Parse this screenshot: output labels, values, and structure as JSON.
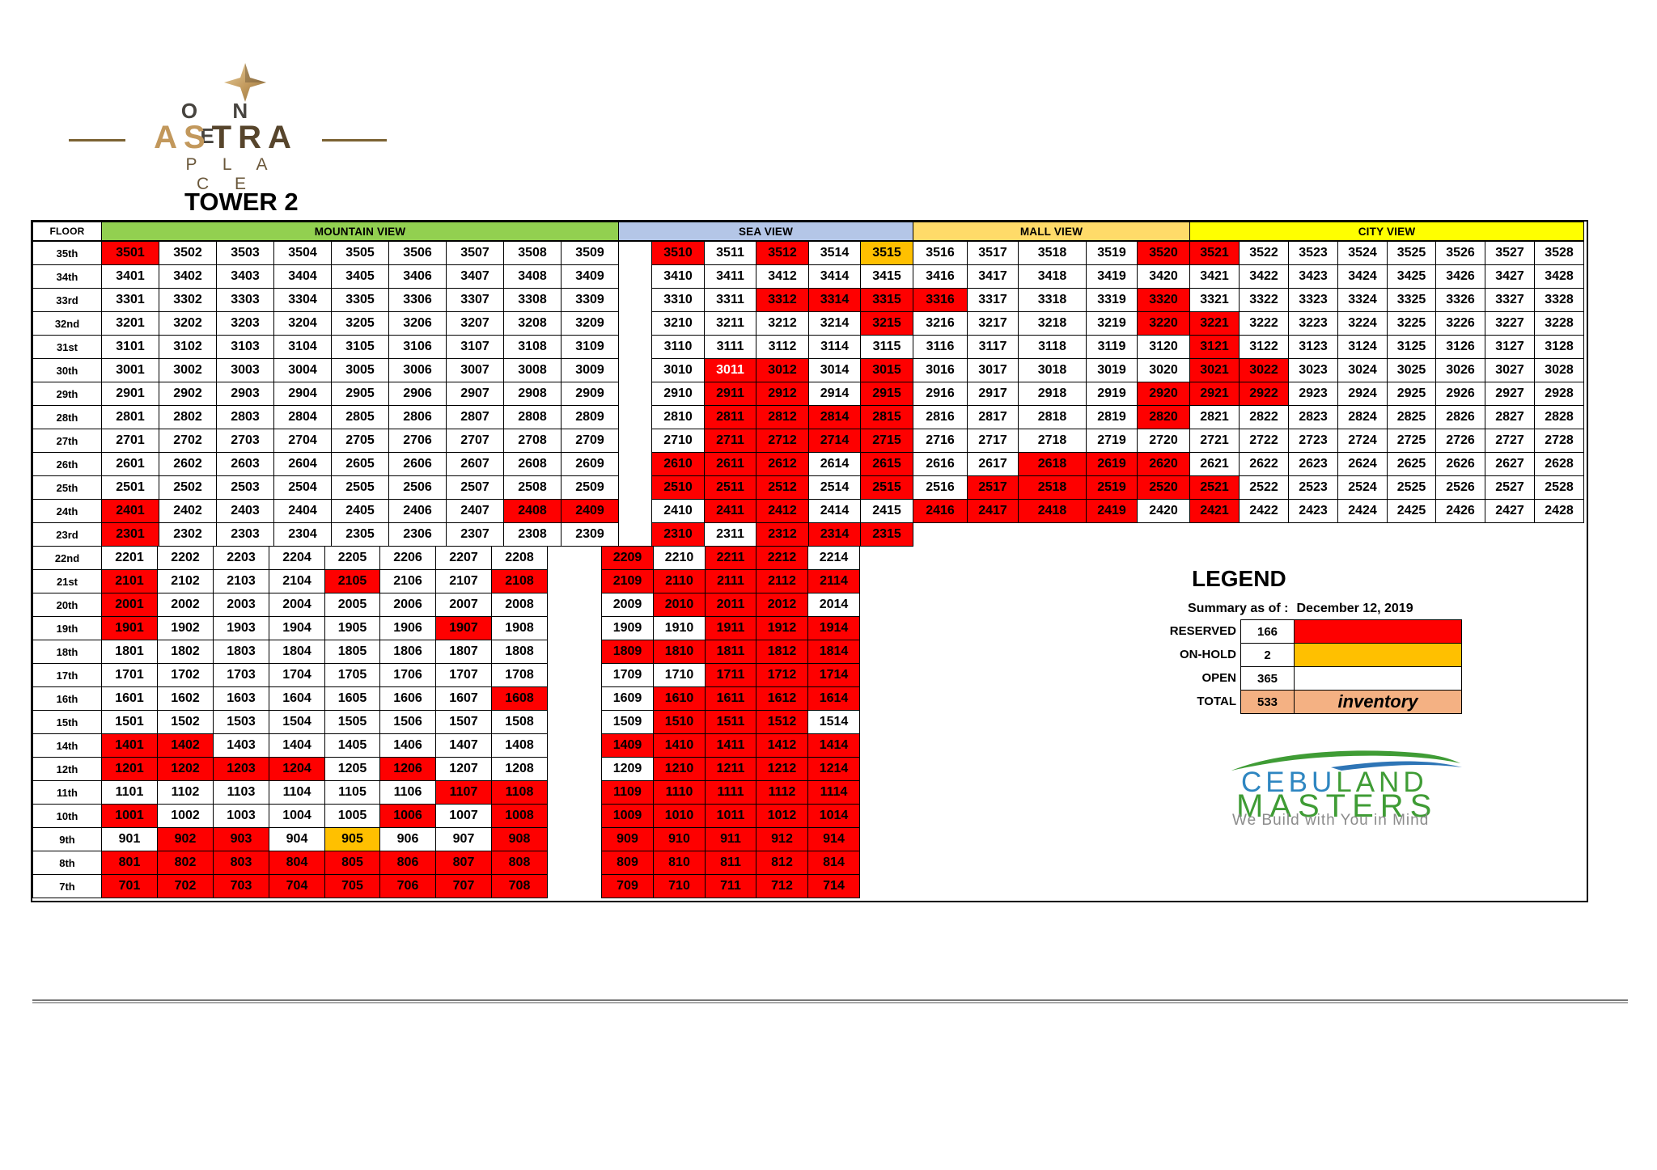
{
  "logo": {
    "line1": "O N E",
    "astra_gold": "AS",
    "astra_brown": "TRA",
    "line3": "P L A C E"
  },
  "title": "TOWER 2",
  "table": {
    "floor_header": "FLOOR",
    "sections": [
      {
        "label": "MOUNTAIN VIEW",
        "color": "#92D050"
      },
      {
        "label": "SEA VIEW",
        "color": "#B4C6E7"
      },
      {
        "label": "MALL VIEW",
        "color": "#FFDB69"
      },
      {
        "label": "CITY VIEW",
        "color": "#FFFF00"
      }
    ],
    "status_colors": {
      "open": "#FFFFFF",
      "reserved": "#FE0000",
      "onhold": "#FFC000"
    },
    "floors": [
      {
        "label": "35th",
        "type": "upper",
        "m": [
          "3501|R",
          "3502|O",
          "3503|O",
          "3504|O",
          "3505|O",
          "3506|O",
          "3507|O",
          "3508|O",
          "3509|O"
        ],
        "sea": [
          "3510|R",
          "3511|O",
          "3512|R",
          "3514|O",
          "3515|H"
        ],
        "mall": [
          "3516|O",
          "3517|O",
          "3518|O",
          "3519|O",
          "3520|R"
        ],
        "city": [
          "3521|R",
          "3522|O",
          "3523|O",
          "3524|O",
          "3525|O",
          "3526|O",
          "3527|O",
          "3528|O"
        ]
      },
      {
        "label": "34th",
        "type": "upper",
        "m": [
          "3401|O",
          "3402|O",
          "3403|O",
          "3404|O",
          "3405|O",
          "3406|O",
          "3407|O",
          "3408|O",
          "3409|O"
        ],
        "sea": [
          "3410|O",
          "3411|O",
          "3412|O",
          "3414|O",
          "3415|O"
        ],
        "mall": [
          "3416|O",
          "3417|O",
          "3418|O",
          "3419|O",
          "3420|O"
        ],
        "city": [
          "3421|O",
          "3422|O",
          "3423|O",
          "3424|O",
          "3425|O",
          "3426|O",
          "3427|O",
          "3428|O"
        ]
      },
      {
        "label": "33rd",
        "type": "upper",
        "m": [
          "3301|O",
          "3302|O",
          "3303|O",
          "3304|O",
          "3305|O",
          "3306|O",
          "3307|O",
          "3308|O",
          "3309|O"
        ],
        "sea": [
          "3310|O",
          "3311|O",
          "3312|R",
          "3314|R",
          "3315|R"
        ],
        "mall": [
          "3316|R",
          "3317|O",
          "3318|O",
          "3319|O",
          "3320|R"
        ],
        "city": [
          "3321|O",
          "3322|O",
          "3323|O",
          "3324|O",
          "3325|O",
          "3326|O",
          "3327|O",
          "3328|O"
        ]
      },
      {
        "label": "32nd",
        "type": "upper",
        "m": [
          "3201|O",
          "3202|O",
          "3203|O",
          "3204|O",
          "3205|O",
          "3206|O",
          "3207|O",
          "3208|O",
          "3209|O"
        ],
        "sea": [
          "3210|O",
          "3211|O",
          "3212|O",
          "3214|O",
          "3215|R"
        ],
        "mall": [
          "3216|O",
          "3217|O",
          "3218|O",
          "3219|O",
          "3220|R"
        ],
        "city": [
          "3221|R",
          "3222|O",
          "3223|O",
          "3224|O",
          "3225|O",
          "3226|O",
          "3227|O",
          "3228|O"
        ]
      },
      {
        "label": "31st",
        "type": "upper",
        "m": [
          "3101|O",
          "3102|O",
          "3103|O",
          "3104|O",
          "3105|O",
          "3106|O",
          "3107|O",
          "3108|O",
          "3109|O"
        ],
        "sea": [
          "3110|O",
          "3111|O",
          "3112|O",
          "3114|O",
          "3115|O"
        ],
        "mall": [
          "3116|O",
          "3117|O",
          "3118|O",
          "3119|O",
          "3120|O"
        ],
        "city": [
          "3121|R",
          "3122|O",
          "3123|O",
          "3124|O",
          "3125|O",
          "3126|O",
          "3127|O",
          "3128|O"
        ]
      },
      {
        "label": "30th",
        "type": "upper",
        "m": [
          "3001|O",
          "3002|O",
          "3003|O",
          "3004|O",
          "3005|O",
          "3006|O",
          "3007|O",
          "3008|O",
          "3009|O"
        ],
        "sea": [
          "3010|O",
          "3011|W",
          "3012|R",
          "3014|O",
          "3015|R"
        ],
        "mall": [
          "3016|O",
          "3017|O",
          "3018|O",
          "3019|O",
          "3020|O"
        ],
        "city": [
          "3021|R",
          "3022|R",
          "3023|O",
          "3024|O",
          "3025|O",
          "3026|O",
          "3027|O",
          "3028|O"
        ]
      },
      {
        "label": "29th",
        "type": "upper",
        "m": [
          "2901|O",
          "2902|O",
          "2903|O",
          "2904|O",
          "2905|O",
          "2906|O",
          "2907|O",
          "2908|O",
          "2909|O"
        ],
        "sea": [
          "2910|O",
          "2911|R",
          "2912|R",
          "2914|O",
          "2915|R"
        ],
        "mall": [
          "2916|O",
          "2917|O",
          "2918|O",
          "2919|O",
          "2920|R"
        ],
        "city": [
          "2921|R",
          "2922|R",
          "2923|O",
          "2924|O",
          "2925|O",
          "2926|O",
          "2927|O",
          "2928|O"
        ]
      },
      {
        "label": "28th",
        "type": "upper",
        "m": [
          "2801|O",
          "2802|O",
          "2803|O",
          "2804|O",
          "2805|O",
          "2806|O",
          "2807|O",
          "2808|O",
          "2809|O"
        ],
        "sea": [
          "2810|O",
          "2811|R",
          "2812|R",
          "2814|R",
          "2815|R"
        ],
        "mall": [
          "2816|O",
          "2817|O",
          "2818|O",
          "2819|O",
          "2820|R"
        ],
        "city": [
          "2821|O",
          "2822|O",
          "2823|O",
          "2824|O",
          "2825|O",
          "2826|O",
          "2827|O",
          "2828|O"
        ]
      },
      {
        "label": "27th",
        "type": "upper",
        "m": [
          "2701|O",
          "2702|O",
          "2703|O",
          "2704|O",
          "2705|O",
          "2706|O",
          "2707|O",
          "2708|O",
          "2709|O"
        ],
        "sea": [
          "2710|O",
          "2711|R",
          "2712|R",
          "2714|R",
          "2715|R"
        ],
        "mall": [
          "2716|O",
          "2717|O",
          "2718|O",
          "2719|O",
          "2720|O"
        ],
        "city": [
          "2721|O",
          "2722|O",
          "2723|O",
          "2724|O",
          "2725|O",
          "2726|O",
          "2727|O",
          "2728|O"
        ]
      },
      {
        "label": "26th",
        "type": "upper",
        "m": [
          "2601|O",
          "2602|O",
          "2603|O",
          "2604|O",
          "2605|O",
          "2606|O",
          "2607|O",
          "2608|O",
          "2609|O"
        ],
        "sea": [
          "2610|R",
          "2611|R",
          "2612|R",
          "2614|O",
          "2615|R"
        ],
        "mall": [
          "2616|O",
          "2617|O",
          "2618|R",
          "2619|R",
          "2620|R"
        ],
        "city": [
          "2621|O",
          "2622|O",
          "2623|O",
          "2624|O",
          "2625|O",
          "2626|O",
          "2627|O",
          "2628|O"
        ]
      },
      {
        "label": "25th",
        "type": "upper",
        "m": [
          "2501|O",
          "2502|O",
          "2503|O",
          "2504|O",
          "2505|O",
          "2506|O",
          "2507|O",
          "2508|O",
          "2509|O"
        ],
        "sea": [
          "2510|R",
          "2511|R",
          "2512|R",
          "2514|O",
          "2515|R"
        ],
        "mall": [
          "2516|O",
          "2517|R",
          "2518|R",
          "2519|R",
          "2520|R"
        ],
        "city": [
          "2521|R",
          "2522|O",
          "2523|O",
          "2524|O",
          "2525|O",
          "2526|O",
          "2527|O",
          "2528|O"
        ]
      },
      {
        "label": "24th",
        "type": "upper",
        "m": [
          "2401|R",
          "2402|O",
          "2403|O",
          "2404|O",
          "2405|O",
          "2406|O",
          "2407|O",
          "2408|R",
          "2409|R"
        ],
        "sea": [
          "2410|O",
          "2411|R",
          "2412|R",
          "2414|O",
          "2415|O"
        ],
        "mall": [
          "2416|R",
          "2417|R",
          "2418|R",
          "2419|R",
          "2420|O"
        ],
        "city": [
          "2421|R",
          "2422|O",
          "2423|O",
          "2424|O",
          "2425|O",
          "2426|O",
          "2427|O",
          "2428|O"
        ]
      },
      {
        "label": "23rd",
        "type": "f23",
        "m": [
          "2301|R",
          "2302|O",
          "2303|O",
          "2304|O",
          "2305|O",
          "2306|O",
          "2307|O",
          "2308|O",
          "2309|O"
        ],
        "sea": [
          "2310|R",
          "2311|O",
          "2312|R",
          "2314|R",
          "2315|R"
        ]
      },
      {
        "label": "22nd",
        "type": "lower",
        "m": [
          "2201|O",
          "2202|O",
          "2203|O",
          "2204|O",
          "2205|O",
          "2206|O",
          "2207|O",
          "2208|O"
        ],
        "sea": [
          "2209|R",
          "2210|O",
          "2211|R",
          "2212|R",
          "2214|O"
        ]
      },
      {
        "label": "21st",
        "type": "lower",
        "m": [
          "2101|R",
          "2102|O",
          "2103|O",
          "2104|O",
          "2105|R",
          "2106|O",
          "2107|O",
          "2108|R"
        ],
        "sea": [
          "2109|R",
          "2110|R",
          "2111|R",
          "2112|R",
          "2114|R"
        ]
      },
      {
        "label": "20th",
        "type": "lower",
        "m": [
          "2001|R",
          "2002|O",
          "2003|O",
          "2004|O",
          "2005|O",
          "2006|O",
          "2007|O",
          "2008|O"
        ],
        "sea": [
          "2009|O",
          "2010|R",
          "2011|R",
          "2012|R",
          "2014|O"
        ]
      },
      {
        "label": "19th",
        "type": "lower",
        "m": [
          "1901|R",
          "1902|O",
          "1903|O",
          "1904|O",
          "1905|O",
          "1906|O",
          "1907|R",
          "1908|O"
        ],
        "sea": [
          "1909|O",
          "1910|O",
          "1911|R",
          "1912|R",
          "1914|R"
        ]
      },
      {
        "label": "18th",
        "type": "lower",
        "m": [
          "1801|O",
          "1802|O",
          "1803|O",
          "1804|O",
          "1805|O",
          "1806|O",
          "1807|O",
          "1808|O"
        ],
        "sea": [
          "1809|R",
          "1810|R",
          "1811|R",
          "1812|R",
          "1814|R"
        ]
      },
      {
        "label": "17th",
        "type": "lower",
        "m": [
          "1701|O",
          "1702|O",
          "1703|O",
          "1704|O",
          "1705|O",
          "1706|O",
          "1707|O",
          "1708|O"
        ],
        "sea": [
          "1709|O",
          "1710|O",
          "1711|R",
          "1712|R",
          "1714|R"
        ]
      },
      {
        "label": "16th",
        "type": "lower",
        "m": [
          "1601|O",
          "1602|O",
          "1603|O",
          "1604|O",
          "1605|O",
          "1606|O",
          "1607|O",
          "1608|R"
        ],
        "sea": [
          "1609|O",
          "1610|R",
          "1611|R",
          "1612|R",
          "1614|R"
        ]
      },
      {
        "label": "15th",
        "type": "lower",
        "m": [
          "1501|O",
          "1502|O",
          "1503|O",
          "1504|O",
          "1505|O",
          "1506|O",
          "1507|O",
          "1508|O"
        ],
        "sea": [
          "1509|O",
          "1510|R",
          "1511|R",
          "1512|R",
          "1514|O"
        ]
      },
      {
        "label": "14th",
        "type": "lower",
        "m": [
          "1401|R",
          "1402|R",
          "1403|O",
          "1404|O",
          "1405|O",
          "1406|O",
          "1407|O",
          "1408|O"
        ],
        "sea": [
          "1409|R",
          "1410|R",
          "1411|R",
          "1412|R",
          "1414|R"
        ]
      },
      {
        "label": "12th",
        "type": "lower",
        "m": [
          "1201|R",
          "1202|R",
          "1203|R",
          "1204|R",
          "1205|O",
          "1206|R",
          "1207|O",
          "1208|O"
        ],
        "sea": [
          "1209|O",
          "1210|R",
          "1211|R",
          "1212|R",
          "1214|R"
        ]
      },
      {
        "label": "11th",
        "type": "lower",
        "m": [
          "1101|O",
          "1102|O",
          "1103|O",
          "1104|O",
          "1105|O",
          "1106|O",
          "1107|R",
          "1108|R"
        ],
        "sea": [
          "1109|R",
          "1110|R",
          "1111|R",
          "1112|R",
          "1114|R"
        ]
      },
      {
        "label": "10th",
        "type": "lower",
        "m": [
          "1001|R",
          "1002|O",
          "1003|O",
          "1004|O",
          "1005|O",
          "1006|R",
          "1007|O",
          "1008|R"
        ],
        "sea": [
          "1009|R",
          "1010|R",
          "1011|R",
          "1012|R",
          "1014|R"
        ]
      },
      {
        "label": "9th",
        "type": "lower",
        "m": [
          "901|O",
          "902|R",
          "903|R",
          "904|O",
          "905|H",
          "906|O",
          "907|O",
          "908|R"
        ],
        "sea": [
          "909|R",
          "910|R",
          "911|R",
          "912|R",
          "914|R"
        ]
      },
      {
        "label": "8th",
        "type": "lower",
        "m": [
          "801|R",
          "802|R",
          "803|R",
          "804|R",
          "805|R",
          "806|R",
          "807|R",
          "808|R"
        ],
        "sea": [
          "809|R",
          "810|R",
          "811|R",
          "812|R",
          "814|R"
        ]
      },
      {
        "label": "7th",
        "type": "lower",
        "m": [
          "701|R",
          "702|R",
          "703|R",
          "704|R",
          "705|R",
          "706|R",
          "707|R",
          "708|R"
        ],
        "sea": [
          "709|R",
          "710|R",
          "711|R",
          "712|R",
          "714|R"
        ]
      }
    ]
  },
  "legend": {
    "title": "LEGEND",
    "summary_label": "Summary as of :",
    "summary_date": "December 12, 2019",
    "rows": [
      {
        "label": "RESERVED",
        "count": "166",
        "color": "#FE0000"
      },
      {
        "label": "ON-HOLD",
        "count": "2",
        "color": "#FFC000"
      },
      {
        "label": "OPEN",
        "count": "365",
        "color": "#FFFFFF"
      },
      {
        "label": "TOTAL",
        "count": "533",
        "color": "#F4B183",
        "note": "inventory"
      }
    ]
  },
  "brand": {
    "name_part1": "CEBU",
    "name_part2": "LAND",
    "name_part3": "MASTERS",
    "tagline": "We Build with You in Mind",
    "blue": "#2E86C1",
    "green": "#3F9C35"
  }
}
